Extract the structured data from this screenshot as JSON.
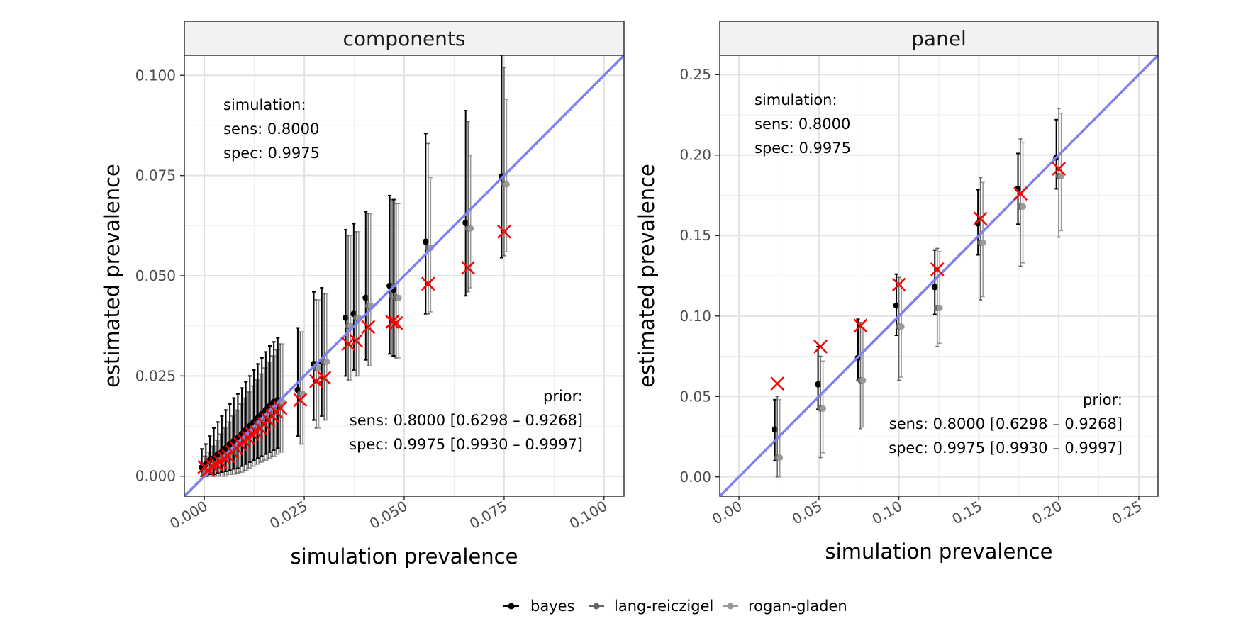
{
  "legend": {
    "items": [
      {
        "label": "bayes",
        "color": "#000000"
      },
      {
        "label": "lang-reiczigel",
        "color": "#666666"
      },
      {
        "label": "rogan-gladen",
        "color": "#999999"
      }
    ]
  },
  "chart_data": [
    {
      "type": "scatter",
      "title": "components",
      "xlabel": "simulation prevalence",
      "ylabel": "estimated prevalence",
      "xlim": [
        -0.005,
        0.105
      ],
      "ylim": [
        -0.005,
        0.105
      ],
      "xticks": [
        "0.000",
        "0.025",
        "0.050",
        "0.075",
        "0.100"
      ],
      "yticks": [
        "0.000",
        "0.025",
        "0.050",
        "0.075",
        "0.100"
      ],
      "x_ticks_values": [
        0,
        0.025,
        0.05,
        0.075,
        0.1
      ],
      "y_ticks_values": [
        0,
        0.025,
        0.05,
        0.075,
        0.1
      ],
      "grid": true,
      "identity_line": true,
      "identity_color": "#8080f0",
      "annotation_simulation": [
        "simulation:",
        "sens: 0.8000",
        "spec: 0.9975"
      ],
      "annotation_prior": [
        "prior:",
        "sens: 0.8000 [0.6298 – 0.9268]",
        "spec: 0.9975 [0.9930 – 0.9997]"
      ],
      "points": [
        {
          "x": 0.0,
          "bayes": [
            0.0022,
            0.0,
            0.0068
          ],
          "lang": [
            0.0005,
            0.0,
            0.005
          ],
          "rogan": [
            0.0005,
            0.0,
            0.005
          ],
          "cross": 0.0023
        },
        {
          "x": 0.001,
          "bayes": [
            0.003,
            0.0,
            0.008
          ],
          "lang": [
            0.0012,
            0.0,
            0.006
          ],
          "rogan": [
            0.0012,
            0.0,
            0.006
          ],
          "cross": 0.0015
        },
        {
          "x": 0.002,
          "bayes": [
            0.004,
            0.0005,
            0.01
          ],
          "lang": [
            0.0022,
            0.0,
            0.0075
          ],
          "rogan": [
            0.0022,
            0.0,
            0.0075
          ],
          "cross": 0.0025
        },
        {
          "x": 0.003,
          "bayes": [
            0.0045,
            0.0005,
            0.012
          ],
          "lang": [
            0.003,
            0.0,
            0.009
          ],
          "rogan": [
            0.003,
            0.0,
            0.009
          ],
          "cross": 0.003
        },
        {
          "x": 0.004,
          "bayes": [
            0.0055,
            0.0008,
            0.0135
          ],
          "lang": [
            0.004,
            0.0,
            0.0105
          ],
          "rogan": [
            0.004,
            0.0,
            0.0105
          ],
          "cross": 0.0035
        },
        {
          "x": 0.005,
          "bayes": [
            0.006,
            0.001,
            0.015
          ],
          "lang": [
            0.0045,
            0.0,
            0.012
          ],
          "rogan": [
            0.0045,
            0.0,
            0.012
          ],
          "cross": 0.0045
        },
        {
          "x": 0.006,
          "bayes": [
            0.007,
            0.0012,
            0.0165
          ],
          "lang": [
            0.0055,
            0.0005,
            0.0135
          ],
          "rogan": [
            0.0055,
            0.0005,
            0.0135
          ],
          "cross": 0.005
        },
        {
          "x": 0.007,
          "bayes": [
            0.008,
            0.0015,
            0.018
          ],
          "lang": [
            0.0065,
            0.0005,
            0.015
          ],
          "rogan": [
            0.0065,
            0.0005,
            0.015
          ],
          "cross": 0.006
        },
        {
          "x": 0.008,
          "bayes": [
            0.0088,
            0.0018,
            0.0195
          ],
          "lang": [
            0.0075,
            0.0008,
            0.0165
          ],
          "rogan": [
            0.0075,
            0.0008,
            0.0165
          ],
          "cross": 0.007
        },
        {
          "x": 0.009,
          "bayes": [
            0.0095,
            0.002,
            0.0205
          ],
          "lang": [
            0.0085,
            0.001,
            0.018
          ],
          "rogan": [
            0.0085,
            0.001,
            0.018
          ],
          "cross": 0.008
        },
        {
          "x": 0.01,
          "bayes": [
            0.0105,
            0.0025,
            0.022
          ],
          "lang": [
            0.0095,
            0.0015,
            0.0195
          ],
          "rogan": [
            0.0095,
            0.0015,
            0.0195
          ],
          "cross": 0.0088
        },
        {
          "x": 0.011,
          "bayes": [
            0.0115,
            0.003,
            0.0235
          ],
          "lang": [
            0.0105,
            0.002,
            0.021
          ],
          "rogan": [
            0.0105,
            0.002,
            0.021
          ],
          "cross": 0.0095
        },
        {
          "x": 0.012,
          "bayes": [
            0.0125,
            0.0035,
            0.025
          ],
          "lang": [
            0.0115,
            0.0025,
            0.0225
          ],
          "rogan": [
            0.0115,
            0.0025,
            0.0225
          ],
          "cross": 0.0105
        },
        {
          "x": 0.013,
          "bayes": [
            0.0135,
            0.004,
            0.0265
          ],
          "lang": [
            0.0125,
            0.003,
            0.024
          ],
          "rogan": [
            0.0125,
            0.003,
            0.024
          ],
          "cross": 0.011
        },
        {
          "x": 0.014,
          "bayes": [
            0.0145,
            0.0045,
            0.028
          ],
          "lang": [
            0.0135,
            0.0035,
            0.0255
          ],
          "rogan": [
            0.0135,
            0.0035,
            0.0255
          ],
          "cross": 0.012
        },
        {
          "x": 0.015,
          "bayes": [
            0.0155,
            0.005,
            0.0295
          ],
          "lang": [
            0.0145,
            0.004,
            0.027
          ],
          "rogan": [
            0.0145,
            0.004,
            0.027
          ],
          "cross": 0.013
        },
        {
          "x": 0.016,
          "bayes": [
            0.0165,
            0.0055,
            0.031
          ],
          "lang": [
            0.0155,
            0.0045,
            0.0285
          ],
          "rogan": [
            0.0155,
            0.0045,
            0.0285
          ],
          "cross": 0.014
        },
        {
          "x": 0.017,
          "bayes": [
            0.0175,
            0.006,
            0.0325
          ],
          "lang": [
            0.0165,
            0.005,
            0.03
          ],
          "rogan": [
            0.0165,
            0.005,
            0.03
          ],
          "cross": 0.015
        },
        {
          "x": 0.018,
          "bayes": [
            0.0185,
            0.0065,
            0.0335
          ],
          "lang": [
            0.0175,
            0.0055,
            0.0315
          ],
          "rogan": [
            0.0175,
            0.0055,
            0.0315
          ],
          "cross": 0.016
        },
        {
          "x": 0.019,
          "bayes": [
            0.019,
            0.007,
            0.0345
          ],
          "lang": [
            0.0185,
            0.006,
            0.033
          ],
          "rogan": [
            0.0185,
            0.006,
            0.033
          ],
          "cross": 0.017
        },
        {
          "x": 0.024,
          "bayes": [
            0.0215,
            0.01,
            0.037
          ],
          "lang": [
            0.0205,
            0.008,
            0.036
          ],
          "rogan": [
            0.0205,
            0.008,
            0.036
          ],
          "cross": 0.019
        },
        {
          "x": 0.028,
          "bayes": [
            0.028,
            0.014,
            0.046
          ],
          "lang": [
            0.027,
            0.012,
            0.044
          ],
          "rogan": [
            0.027,
            0.012,
            0.044
          ],
          "cross": 0.0237
        },
        {
          "x": 0.03,
          "bayes": [
            0.0285,
            0.015,
            0.047
          ],
          "lang": [
            0.0285,
            0.014,
            0.0455
          ],
          "rogan": [
            0.0285,
            0.014,
            0.0455
          ],
          "cross": 0.0245
        },
        {
          "x": 0.036,
          "bayes": [
            0.0395,
            0.025,
            0.0615
          ],
          "lang": [
            0.0375,
            0.024,
            0.06
          ],
          "rogan": [
            0.0375,
            0.024,
            0.06
          ],
          "cross": 0.033
        },
        {
          "x": 0.038,
          "bayes": [
            0.0405,
            0.0265,
            0.063
          ],
          "lang": [
            0.0395,
            0.025,
            0.061
          ],
          "rogan": [
            0.0395,
            0.025,
            0.061
          ],
          "cross": 0.0338
        },
        {
          "x": 0.041,
          "bayes": [
            0.0445,
            0.029,
            0.066
          ],
          "lang": [
            0.0425,
            0.0275,
            0.0655
          ],
          "rogan": [
            0.0425,
            0.0275,
            0.0655
          ],
          "cross": 0.0372
        },
        {
          "x": 0.047,
          "bayes": [
            0.0475,
            0.0305,
            0.07
          ],
          "lang": [
            0.045,
            0.03,
            0.069
          ],
          "rogan": [
            0.045,
            0.03,
            0.069
          ],
          "cross": 0.0385
        },
        {
          "x": 0.048,
          "bayes": [
            0.0465,
            0.03,
            0.069
          ],
          "lang": [
            0.0445,
            0.0295,
            0.068
          ],
          "rogan": [
            0.0445,
            0.0295,
            0.068
          ],
          "cross": 0.0382
        },
        {
          "x": 0.056,
          "bayes": [
            0.0585,
            0.0405,
            0.0855
          ],
          "lang": [
            0.057,
            0.0405,
            0.083
          ],
          "rogan": [
            0.057,
            0.041,
            0.0745
          ],
          "cross": 0.048
        },
        {
          "x": 0.066,
          "bayes": [
            0.0632,
            0.045,
            0.0912
          ],
          "lang": [
            0.0618,
            0.046,
            0.0885
          ],
          "rogan": [
            0.0618,
            0.047,
            0.08
          ],
          "cross": 0.052
        },
        {
          "x": 0.075,
          "bayes": [
            0.0748,
            0.0545,
            0.105
          ],
          "lang": [
            0.073,
            0.055,
            0.102
          ],
          "rogan": [
            0.0728,
            0.056,
            0.094
          ],
          "cross": 0.061
        }
      ]
    },
    {
      "type": "scatter",
      "title": "panel",
      "xlabel": "simulation prevalence",
      "ylabel": "estimated prevalence",
      "xlim": [
        -0.012,
        0.262
      ],
      "ylim": [
        -0.012,
        0.262
      ],
      "xticks": [
        "0.00",
        "0.05",
        "0.10",
        "0.15",
        "0.20",
        "0.25"
      ],
      "yticks": [
        "0.00",
        "0.05",
        "0.10",
        "0.15",
        "0.20",
        "0.25"
      ],
      "x_ticks_values": [
        0,
        0.05,
        0.1,
        0.15,
        0.2,
        0.25
      ],
      "y_ticks_values": [
        0,
        0.05,
        0.1,
        0.15,
        0.2,
        0.25
      ],
      "grid": true,
      "identity_line": true,
      "identity_color": "#8080f0",
      "annotation_simulation": [
        "simulation:",
        "sens: 0.8000",
        "spec: 0.9975"
      ],
      "annotation_prior": [
        "prior:",
        "sens: 0.8000 [0.6298 – 0.9268]",
        "spec: 0.9975 [0.9930 – 0.9997]"
      ],
      "points": [
        {
          "x": 0.024,
          "bayes": [
            0.0295,
            0.01,
            0.048
          ],
          "lang": [
            0.012,
            0.0,
            0.05
          ],
          "rogan": [
            0.012,
            0.0,
            0.048
          ],
          "cross": 0.058
        },
        {
          "x": 0.051,
          "bayes": [
            0.0575,
            0.042,
            0.081
          ],
          "lang": [
            0.0425,
            0.012,
            0.075
          ],
          "rogan": [
            0.0425,
            0.015,
            0.072
          ],
          "cross": 0.081
        },
        {
          "x": 0.076,
          "bayes": [
            0.074,
            0.06,
            0.098
          ],
          "lang": [
            0.06,
            0.03,
            0.096
          ],
          "rogan": [
            0.06,
            0.031,
            0.093
          ],
          "cross": 0.094
        },
        {
          "x": 0.1,
          "bayes": [
            0.1065,
            0.088,
            0.126
          ],
          "lang": [
            0.0935,
            0.06,
            0.124
          ],
          "rogan": [
            0.0935,
            0.062,
            0.123
          ],
          "cross": 0.1195
        },
        {
          "x": 0.124,
          "bayes": [
            0.118,
            0.101,
            0.141
          ],
          "lang": [
            0.105,
            0.081,
            0.142
          ],
          "rogan": [
            0.105,
            0.083,
            0.14
          ],
          "cross": 0.129
        },
        {
          "x": 0.151,
          "bayes": [
            0.1575,
            0.138,
            0.1785
          ],
          "lang": [
            0.1455,
            0.11,
            0.186
          ],
          "rogan": [
            0.1455,
            0.112,
            0.183
          ],
          "cross": 0.1605
        },
        {
          "x": 0.176,
          "bayes": [
            0.179,
            0.157,
            0.201
          ],
          "lang": [
            0.168,
            0.131,
            0.21
          ],
          "rogan": [
            0.168,
            0.133,
            0.208
          ],
          "cross": 0.176
        },
        {
          "x": 0.2,
          "bayes": [
            0.1985,
            0.179,
            0.222
          ],
          "lang": [
            0.187,
            0.149,
            0.229
          ],
          "rogan": [
            0.187,
            0.153,
            0.226
          ],
          "cross": 0.1915
        }
      ]
    }
  ]
}
